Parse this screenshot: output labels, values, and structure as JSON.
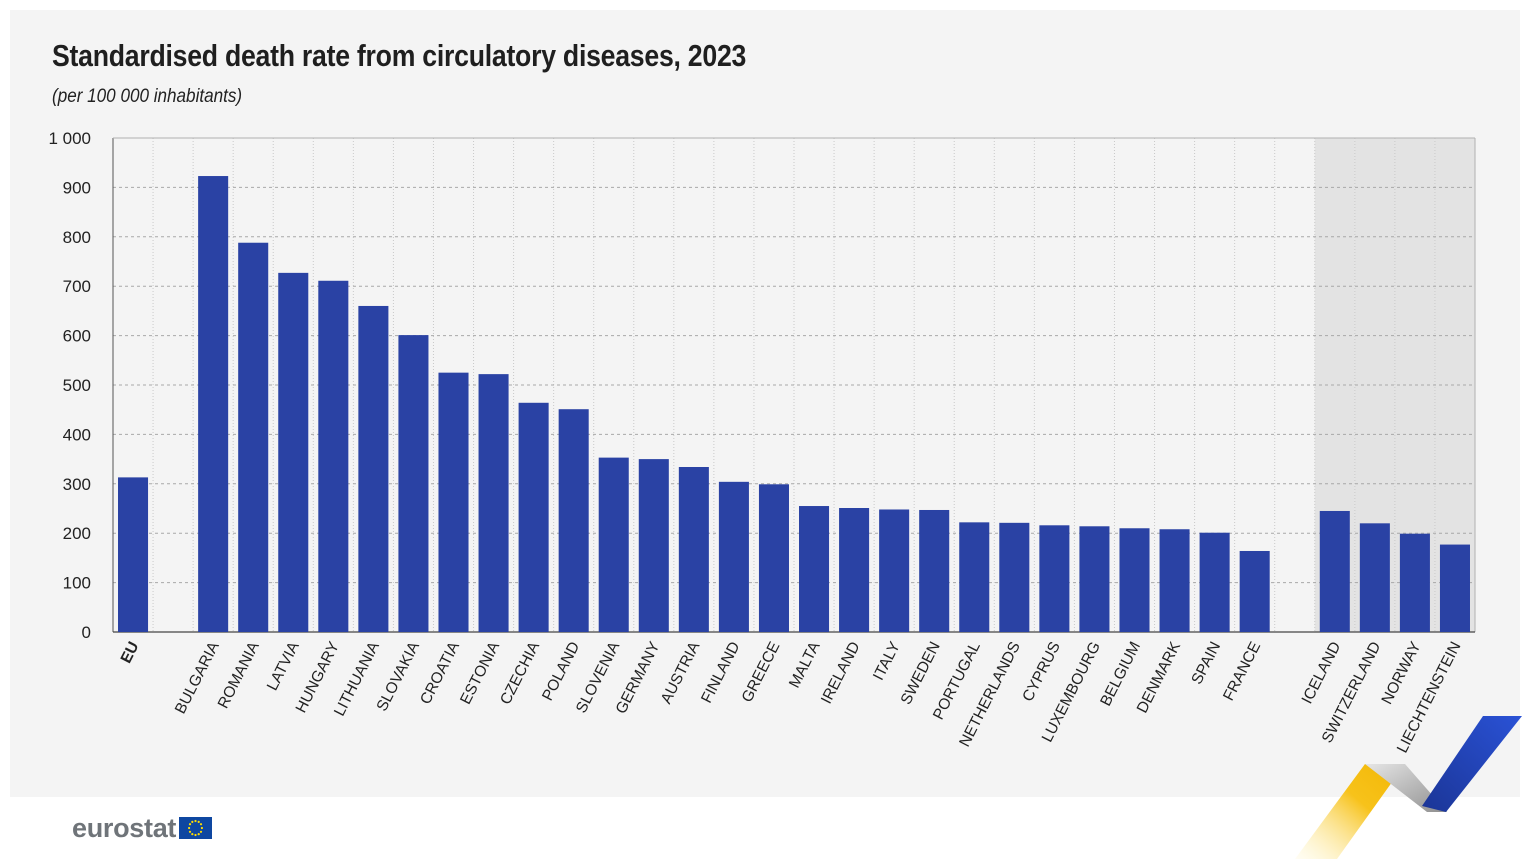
{
  "title": "Standardised death rate from circulatory diseases, 2023",
  "subtitle": "(per 100 000 inhabitants)",
  "logo_text": "eurostat",
  "colors": {
    "bar": "#2a42a4",
    "panel": "#f4f4f4",
    "highlight": "#e3e3e3",
    "grid": "#a8a8a8"
  },
  "chart_data": {
    "type": "bar",
    "title": "Standardised death rate from circulatory diseases, 2023",
    "subtitle": "(per 100 000 inhabitants)",
    "ylim": [
      0,
      1000
    ],
    "yticks": [
      0,
      100,
      200,
      300,
      400,
      500,
      600,
      700,
      800,
      900,
      1000
    ],
    "ytick_labels": [
      "0",
      "100",
      "200",
      "300",
      "400",
      "500",
      "600",
      "700",
      "800",
      "900",
      "1 000"
    ],
    "grid": true,
    "categories": [
      "EU",
      "",
      "BULGARIA",
      "ROMANIA",
      "LATVIA",
      "HUNGARY",
      "LITHUANIA",
      "SLOVAKIA",
      "CROATIA",
      "ESTONIA",
      "CZECHIA",
      "POLAND",
      "SLOVENIA",
      "GERMANY",
      "AUSTRIA",
      "FINLAND",
      "GREECE",
      "MALTA",
      "IRELAND",
      "ITALY",
      "SWEDEN",
      "PORTUGAL",
      "NETHERLANDS",
      "CYPRUS",
      "LUXEMBOURG",
      "BELGIUM",
      "DENMARK",
      "SPAIN",
      "FRANCE",
      "",
      "ICELAND",
      "SWITZERLAND",
      "NORWAY",
      "LIECHTENSTEIN"
    ],
    "values": [
      313,
      null,
      923,
      788,
      727,
      711,
      660,
      601,
      525,
      522,
      464,
      451,
      353,
      350,
      334,
      304,
      299,
      255,
      251,
      248,
      247,
      222,
      221,
      216,
      214,
      210,
      208,
      201,
      164,
      null,
      245,
      220,
      199,
      177
    ],
    "bold_categories": [
      "EU"
    ],
    "shaded_categories": [
      "ICELAND",
      "SWITZERLAND",
      "NORWAY",
      "LIECHTENSTEIN"
    ]
  }
}
